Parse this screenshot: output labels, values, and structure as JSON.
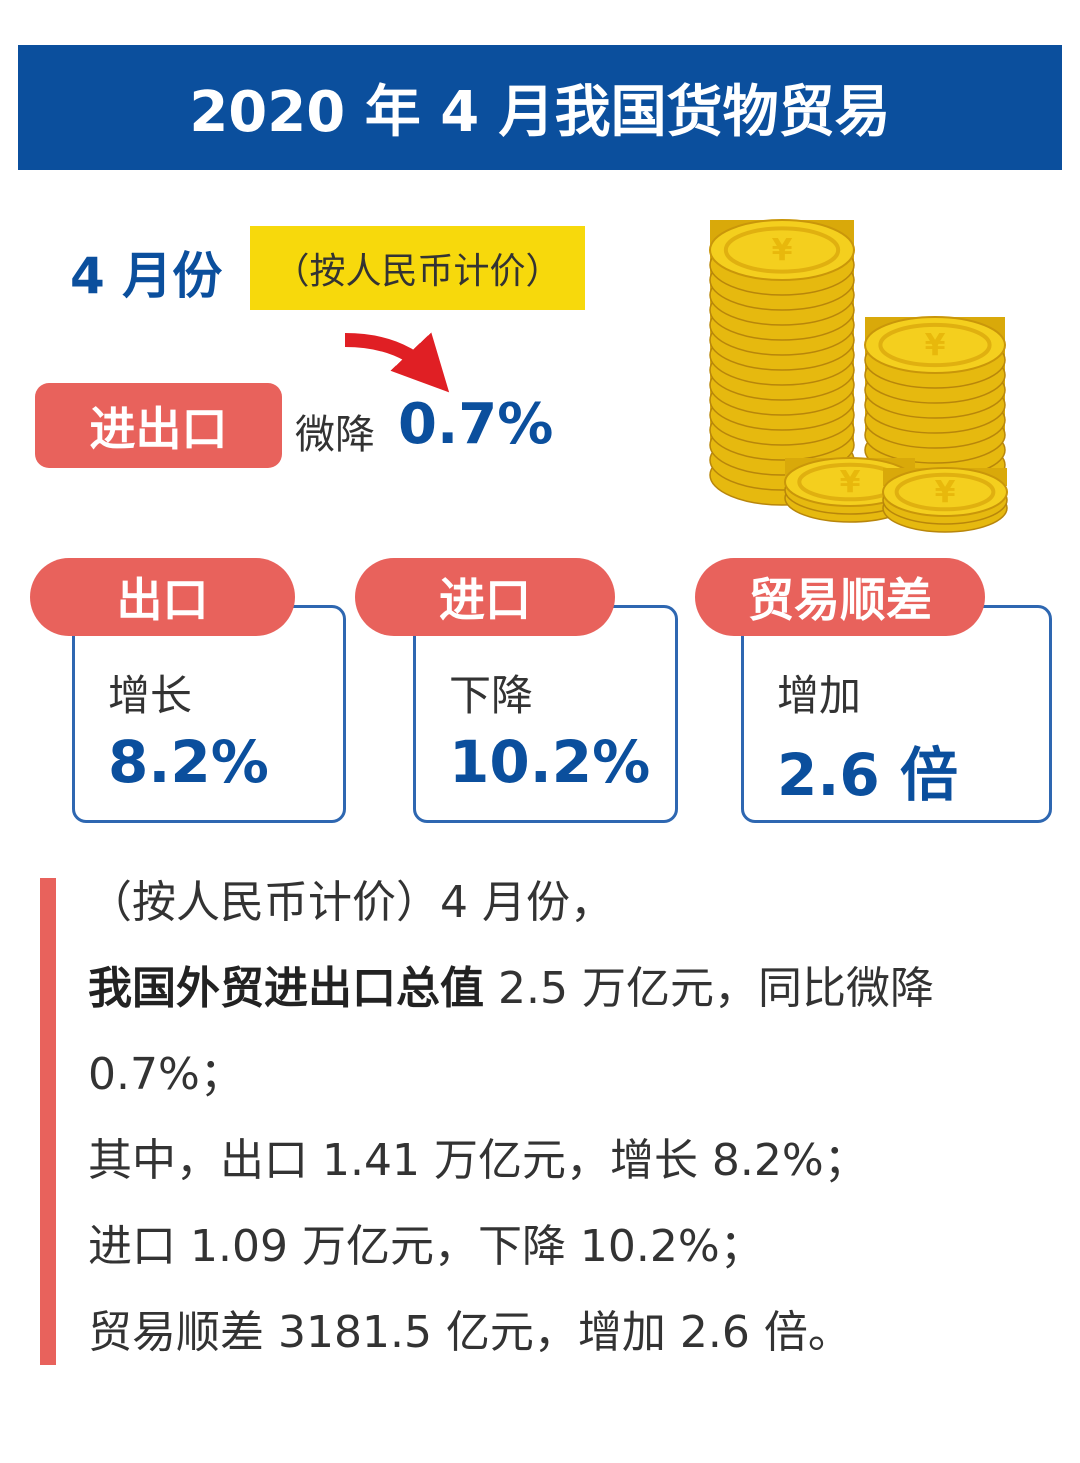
{
  "header": {
    "title": "2020 年 4 月我国货物贸易"
  },
  "intro": {
    "period": "4 月份",
    "note": "（按人民币计价）"
  },
  "total": {
    "label": "进出口",
    "change": "微降",
    "value": "0.7%"
  },
  "cards": [
    {
      "label": "出口",
      "change": "增长",
      "value": "8.2%"
    },
    {
      "label": "进口",
      "change": "下降",
      "value": "10.2%"
    },
    {
      "label": "贸易顺差",
      "change": "增加",
      "value": "2.6 倍"
    }
  ],
  "summary": {
    "paragraphs": [
      {
        "text": "（按人民币计价）4 月份，"
      },
      {
        "bold": "我国外贸进出口总值",
        "text": " 2.5 万亿元，同比微降 0.7%；"
      },
      {
        "text": "其中，出口 1.41 万亿元，增长 8.2%；"
      },
      {
        "text": "进口 1.09 万亿元，下降 10.2%；"
      },
      {
        "text": "贸易顺差 3181.5 亿元，增加 2.6 倍。"
      }
    ]
  }
}
